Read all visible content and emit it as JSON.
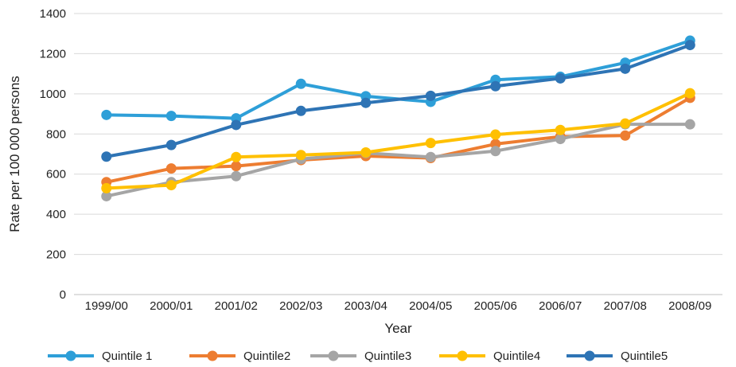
{
  "chart_data": {
    "type": "line",
    "title": "",
    "xlabel": "Year",
    "ylabel": "Rate per 100 000 persons",
    "ylim": [
      0,
      1400
    ],
    "yticks": [
      0,
      200,
      400,
      600,
      800,
      1000,
      1200,
      1400
    ],
    "grid": "horizontal",
    "legend": "bottom",
    "categories": [
      "1999/00",
      "2000/01",
      "2001/02",
      "2002/03",
      "2003/04",
      "2004/05",
      "2005/06",
      "2006/07",
      "2007/08",
      "2008/09"
    ],
    "series": [
      {
        "name": "Quintile 1",
        "color": "#2e9fd8",
        "values": [
          895,
          890,
          878,
          1050,
          988,
          960,
          1070,
          1085,
          1155,
          1265
        ]
      },
      {
        "name": "Quintile2",
        "color": "#ed7d31",
        "values": [
          560,
          628,
          640,
          670,
          690,
          680,
          750,
          787,
          792,
          980
        ]
      },
      {
        "name": "Quintile3",
        "color": "#a5a5a5",
        "values": [
          490,
          560,
          590,
          675,
          705,
          685,
          715,
          775,
          848,
          848
        ]
      },
      {
        "name": "Quintile4",
        "color": "#ffc000",
        "values": [
          530,
          545,
          685,
          695,
          708,
          755,
          797,
          820,
          852,
          1003
        ]
      },
      {
        "name": "Quintile5",
        "color": "#2e74b5",
        "values": [
          687,
          745,
          845,
          915,
          955,
          990,
          1038,
          1077,
          1125,
          1243
        ]
      }
    ]
  }
}
